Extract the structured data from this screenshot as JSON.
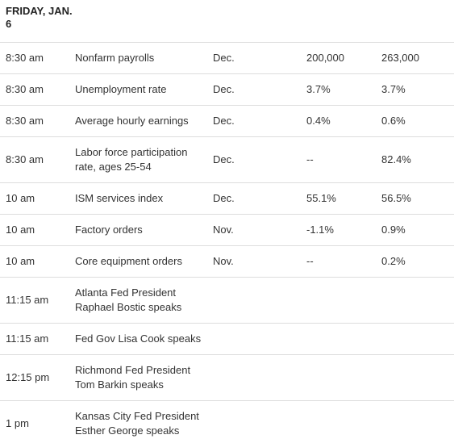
{
  "header": {
    "title": "FRIDAY, JAN. 6"
  },
  "table": {
    "rows": [
      {
        "time": "8:30 am",
        "event": "Nonfarm payrolls",
        "period": "Dec.",
        "forecast": "200,000",
        "previous": "263,000"
      },
      {
        "time": "8:30 am",
        "event": "Unemployment rate",
        "period": "Dec.",
        "forecast": "3.7%",
        "previous": "3.7%"
      },
      {
        "time": "8:30 am",
        "event": "Average hourly earnings",
        "period": "Dec.",
        "forecast": "0.4%",
        "previous": "0.6%"
      },
      {
        "time": "8:30 am",
        "event": "Labor force participation rate, ages 25-54",
        "period": "Dec.",
        "forecast": "--",
        "previous": "82.4%"
      },
      {
        "time": "10 am",
        "event": "ISM services index",
        "period": "Dec.",
        "forecast": "55.1%",
        "previous": "56.5%"
      },
      {
        "time": "10 am",
        "event": "Factory orders",
        "period": "Nov.",
        "forecast": "-1.1%",
        "previous": "0.9%"
      },
      {
        "time": "10 am",
        "event": "Core equipment orders",
        "period": "Nov.",
        "forecast": "--",
        "previous": "0.2%"
      },
      {
        "time": "11:15 am",
        "event": "Atlanta Fed President Raphael Bostic speaks"
      },
      {
        "time": "11:15 am",
        "event": "Fed Gov Lisa Cook speaks"
      },
      {
        "time": "12:15 pm",
        "event": "Richmond Fed President Tom Barkin speaks"
      },
      {
        "time": "1 pm",
        "event": "Kansas City Fed President Esther George speaks"
      }
    ]
  }
}
